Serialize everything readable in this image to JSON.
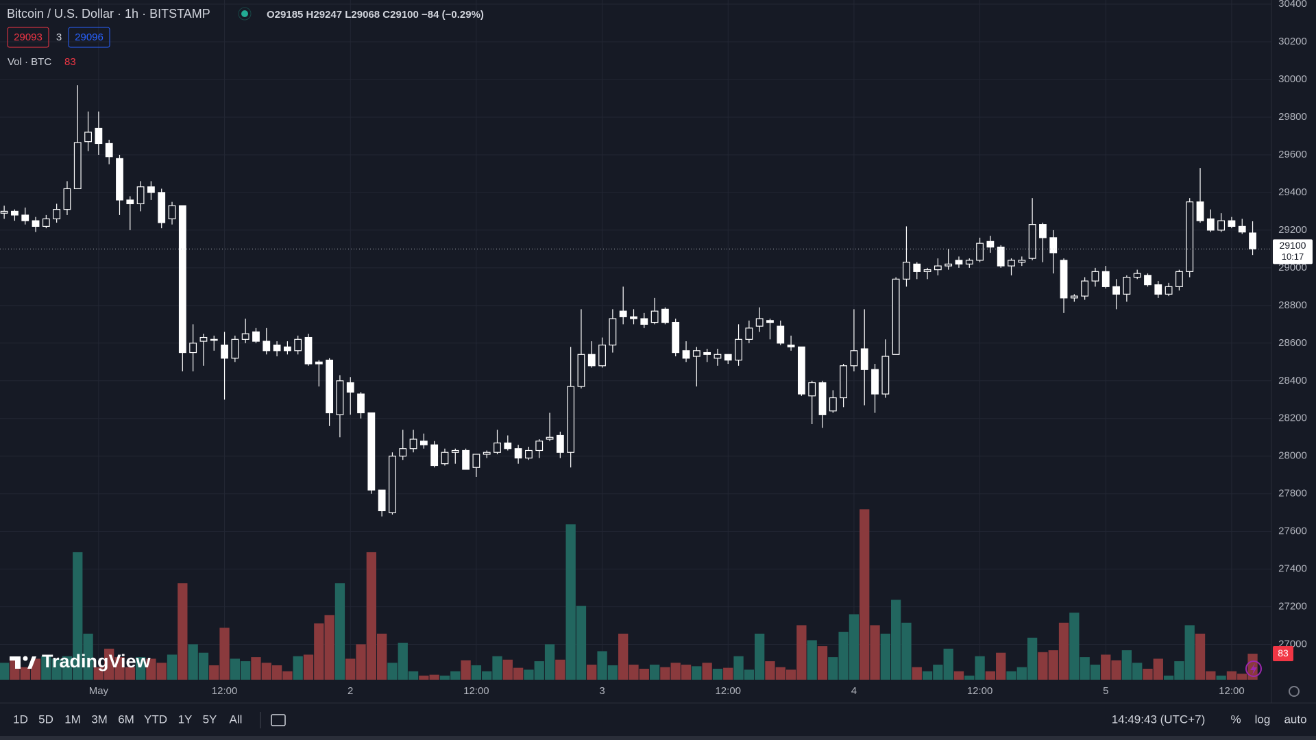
{
  "header": {
    "symbol": "Bitcoin / U.S. Dollar · 1h · BITSTAMP",
    "ohlc": "O29185 H29247 L29068 C29100 −84 (−0.29%)",
    "bid": "29093",
    "spread": "3",
    "ask": "29096",
    "volume_label": "Vol · BTC"
  },
  "chart_data": {
    "type": "candlestick",
    "categories": [
      null,
      null,
      null,
      null,
      null,
      null,
      null,
      null,
      null,
      "May",
      null,
      null,
      null,
      null,
      null,
      null,
      null,
      null,
      null,
      null,
      null,
      "12:00",
      null,
      null,
      null,
      null,
      null,
      null,
      null,
      null,
      null,
      null,
      null,
      "2",
      null,
      null,
      null,
      null,
      null,
      null,
      null,
      null,
      null,
      null,
      null,
      "12:00",
      null,
      null,
      null,
      null,
      null,
      null,
      null,
      null,
      null,
      null,
      null,
      "3",
      null,
      null,
      null,
      null,
      null,
      null,
      null,
      null,
      null,
      null,
      null,
      "12:00",
      null,
      null,
      null,
      null,
      null,
      null,
      null,
      null,
      null,
      null,
      null,
      "4",
      null,
      null,
      null,
      null,
      null,
      null,
      null,
      null,
      null,
      null,
      null,
      "12:00",
      null,
      null,
      null,
      null,
      null,
      null,
      null,
      null,
      null,
      null,
      null,
      "5",
      null,
      null,
      null,
      null,
      null,
      null,
      null,
      null,
      null,
      null,
      null,
      "12:00",
      null,
      null
    ],
    "open": [
      29290,
      29300,
      29280,
      29250,
      29220,
      29260,
      29310,
      29420,
      29670,
      29740,
      29660,
      29580,
      29360,
      29340,
      29430,
      29400,
      29260,
      29330,
      28550,
      28610,
      28620,
      28590,
      28520,
      28620,
      28660,
      28610,
      28590,
      28580,
      28560,
      28630,
      28500,
      28510,
      28220,
      28390,
      28330,
      28230,
      27820,
      27700,
      28000,
      28040,
      28080,
      28060,
      27960,
      28020,
      28030,
      27940,
      28010,
      28020,
      28070,
      28040,
      27990,
      28030,
      28090,
      28110,
      28020,
      28370,
      28540,
      28480,
      28590,
      28770,
      28740,
      28730,
      28710,
      28780,
      28710,
      28560,
      28530,
      28550,
      28520,
      28540,
      28510,
      28620,
      28690,
      28720,
      28690,
      28590,
      28580,
      28320,
      28390,
      28240,
      28310,
      28480,
      28570,
      28460,
      28330,
      28540,
      28940,
      29020,
      28980,
      28990,
      29010,
      29040,
      29020,
      29040,
      29140,
      29110,
      29010,
      29030,
      29050,
      29230,
      29160,
      29040,
      28840,
      28850,
      28930,
      28980,
      28900,
      28860,
      28950,
      28960,
      28910,
      28860,
      28900,
      28980,
      29350,
      29260,
      29200,
      29250,
      29220,
      29185
    ],
    "high": [
      29330,
      29310,
      29320,
      29270,
      29280,
      29340,
      29460,
      29970,
      29830,
      29830,
      29680,
      29600,
      29380,
      29460,
      29460,
      29420,
      29350,
      29330,
      28700,
      28650,
      28640,
      28660,
      28640,
      28730,
      28680,
      28680,
      28610,
      28610,
      28640,
      28650,
      28510,
      28520,
      28430,
      28420,
      28340,
      28230,
      27820,
      28020,
      28140,
      28140,
      28120,
      28080,
      28040,
      28040,
      28040,
      28010,
      28030,
      28140,
      28110,
      28060,
      28050,
      28090,
      28230,
      28130,
      28580,
      28780,
      28610,
      28630,
      28780,
      28900,
      28780,
      28760,
      28840,
      28790,
      28730,
      28610,
      28580,
      28570,
      28570,
      28540,
      28700,
      28720,
      28790,
      28730,
      28720,
      28640,
      28580,
      28400,
      28400,
      28350,
      28490,
      28780,
      28780,
      28490,
      28620,
      28950,
      29220,
      29030,
      29000,
      29050,
      29100,
      29060,
      29050,
      29160,
      29170,
      29120,
      29050,
      29060,
      29370,
      29240,
      29200,
      29050,
      28860,
      28950,
      29000,
      29010,
      28940,
      28960,
      28990,
      28970,
      28930,
      28920,
      28990,
      29370,
      29530,
      29310,
      29290,
      29270,
      29260,
      29247
    ],
    "low": [
      29260,
      29250,
      29230,
      29190,
      29210,
      29240,
      29280,
      29420,
      29620,
      29600,
      29550,
      29280,
      29200,
      29300,
      29360,
      29210,
      29230,
      28450,
      28450,
      28480,
      28560,
      28300,
      28500,
      28600,
      28600,
      28540,
      28530,
      28540,
      28540,
      28480,
      28370,
      28160,
      28100,
      28220,
      28200,
      27800,
      27680,
      27690,
      27980,
      28020,
      28040,
      27940,
      27950,
      27960,
      27930,
      27890,
      27990,
      28010,
      28030,
      27960,
      27980,
      27990,
      28080,
      27990,
      27940,
      28360,
      28470,
      28470,
      28550,
      28700,
      28700,
      28680,
      28700,
      28700,
      28530,
      28500,
      28370,
      28500,
      28480,
      28490,
      28480,
      28600,
      28660,
      28620,
      28590,
      28560,
      28320,
      28170,
      28150,
      28230,
      28260,
      28450,
      28270,
      28230,
      28310,
      28540,
      28900,
      28940,
      28940,
      28960,
      28990,
      29000,
      29000,
      29030,
      29080,
      29000,
      28960,
      29010,
      29040,
      29030,
      28970,
      28760,
      28820,
      28830,
      28900,
      28890,
      28780,
      28820,
      28940,
      28900,
      28840,
      28850,
      28880,
      28950,
      29240,
      29190,
      29190,
      29210,
      29180,
      29068
    ],
    "close": [
      29300,
      29280,
      29250,
      29220,
      29260,
      29310,
      29420,
      29665,
      29720,
      29660,
      29590,
      29360,
      29340,
      29430,
      29400,
      29240,
      29330,
      28550,
      28600,
      28630,
      28615,
      28520,
      28620,
      28650,
      28610,
      28560,
      28560,
      28560,
      28620,
      28490,
      28490,
      28230,
      28400,
      28340,
      28230,
      27820,
      27710,
      28000,
      28040,
      28090,
      28060,
      27950,
      28020,
      28030,
      27930,
      28010,
      28020,
      28070,
      28040,
      27990,
      28030,
      28080,
      28100,
      28020,
      28370,
      28540,
      28480,
      28590,
      28730,
      28740,
      28730,
      28700,
      28770,
      28710,
      28550,
      28520,
      28560,
      28540,
      28540,
      28510,
      28620,
      28680,
      28730,
      28710,
      28600,
      28580,
      28330,
      28390,
      28220,
      28310,
      28480,
      28560,
      28460,
      28330,
      28530,
      28940,
      29030,
      28980,
      28990,
      29010,
      29020,
      29020,
      29040,
      29130,
      29110,
      29010,
      29040,
      29040,
      29230,
      29160,
      29080,
      28840,
      28850,
      28930,
      28980,
      28900,
      28860,
      28950,
      28970,
      28910,
      28860,
      28900,
      28980,
      29350,
      29250,
      29200,
      29250,
      29220,
      29190,
      29100
    ],
    "volume": [
      54,
      67,
      40,
      67,
      75,
      67,
      75,
      407,
      147,
      40,
      99,
      72,
      40,
      72,
      67,
      54,
      80,
      308,
      113,
      86,
      46,
      166,
      67,
      59,
      72,
      54,
      46,
      27,
      75,
      80,
      180,
      206,
      308,
      67,
      113,
      407,
      147,
      54,
      118,
      27,
      13,
      16,
      13,
      27,
      62,
      46,
      27,
      75,
      64,
      38,
      32,
      59,
      113,
      64,
      496,
      236,
      48,
      91,
      46,
      147,
      48,
      35,
      48,
      40,
      54,
      48,
      43,
      54,
      35,
      38,
      75,
      32,
      147,
      59,
      40,
      32,
      174,
      126,
      107,
      72,
      153,
      209,
      544,
      174,
      147,
      255,
      182,
      40,
      27,
      48,
      99,
      27,
      13,
      75,
      27,
      86,
      27,
      40,
      134,
      88,
      94,
      182,
      214,
      72,
      48,
      80,
      62,
      94,
      54,
      35,
      67,
      13,
      59,
      174,
      147,
      27,
      13,
      27,
      19,
      83
    ],
    "candle_color": "#ffffff",
    "up_volume_color": "#22665f",
    "down_volume_color": "#8a3a3d",
    "ylim": [
      26813,
      30422
    ],
    "yticks": [
      27000,
      27200,
      27400,
      27600,
      27800,
      28000,
      28200,
      28400,
      28600,
      28800,
      29000,
      29200,
      29400,
      29600,
      29800,
      30000,
      30200,
      30400
    ],
    "volume_ylim": [
      0,
      2170
    ],
    "grid": true,
    "countdown": "10:17"
  },
  "toolbar": {
    "ranges": [
      "1D",
      "5D",
      "1M",
      "3M",
      "6M",
      "YTD",
      "1Y",
      "5Y",
      "All"
    ],
    "clock": "14:49:43 (UTC+7)",
    "percent": "%",
    "log": "log",
    "auto": "auto"
  },
  "watermark": "TradingView"
}
